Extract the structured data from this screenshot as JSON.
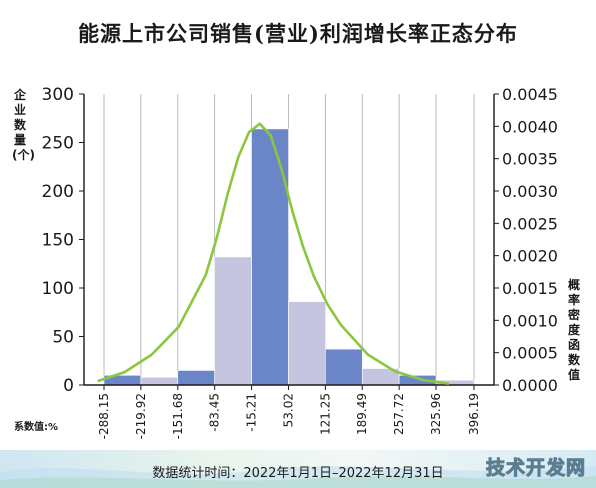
{
  "chart_data": {
    "type": "bar",
    "title": "能源上市公司销售(营业)利润增长率正态分布",
    "left_axis_label": "企业数量(个)",
    "right_axis_label": "概率密度函数值",
    "x_axis_label": "系数值:%",
    "x_ticks": [
      "-288.15",
      "-219.92",
      "-151.68",
      "-83.45",
      "-15.21",
      "53.02",
      "121.25",
      "189.49",
      "257.72",
      "325.96",
      "396.19"
    ],
    "y_left_ticks": [
      "0",
      "50",
      "100",
      "150",
      "200",
      "250",
      "300"
    ],
    "y_right_ticks": [
      "0.0000",
      "0.0005",
      "0.0010",
      "0.0015",
      "0.0020",
      "0.0025",
      "0.0030",
      "0.0035",
      "0.0040",
      "0.0045"
    ],
    "y_left_lim": [
      0,
      300
    ],
    "y_right_lim": [
      0,
      0.0045
    ],
    "bins": [
      {
        "from": -288.15,
        "to": -219.92,
        "count": 10,
        "color": "#6a86c8"
      },
      {
        "from": -219.92,
        "to": -151.68,
        "count": 8,
        "color": "#c5c5e0"
      },
      {
        "from": -151.68,
        "to": -83.45,
        "count": 15,
        "color": "#6a86c8"
      },
      {
        "from": -83.45,
        "to": -15.21,
        "count": 132,
        "color": "#c5c5e0"
      },
      {
        "from": -15.21,
        "to": 53.02,
        "count": 264,
        "color": "#6a86c8"
      },
      {
        "from": 53.02,
        "to": 121.25,
        "count": 86,
        "color": "#c5c5e0"
      },
      {
        "from": 121.25,
        "to": 189.49,
        "count": 37,
        "color": "#6a86c8"
      },
      {
        "from": 189.49,
        "to": 257.72,
        "count": 17,
        "color": "#c5c5e0"
      },
      {
        "from": 257.72,
        "to": 325.96,
        "count": 10,
        "color": "#6a86c8"
      },
      {
        "from": 325.96,
        "to": 396.19,
        "count": 5,
        "color": "#c5c5e0"
      }
    ],
    "density_curve": {
      "color": "#8cc63f",
      "x": [
        -300,
        -250,
        -200,
        -150,
        -100,
        -80,
        -60,
        -40,
        -20,
        0,
        20,
        40,
        60,
        80,
        100,
        125,
        150,
        200,
        250,
        300,
        350
      ],
      "y": [
        6e-05,
        0.0002,
        0.00047,
        0.0009,
        0.0017,
        0.00226,
        0.00294,
        0.00352,
        0.00391,
        0.00404,
        0.00386,
        0.00335,
        0.0027,
        0.00214,
        0.00168,
        0.00125,
        0.00093,
        0.00047,
        0.00021,
        8e-05,
        2e-05
      ]
    },
    "grid": "vertical-only",
    "grid_color": "#aaaaaa"
  },
  "footer": {
    "text": "数据统计时间：2022年1月1日–2022年12月31日",
    "watermark": "技术开发网"
  }
}
